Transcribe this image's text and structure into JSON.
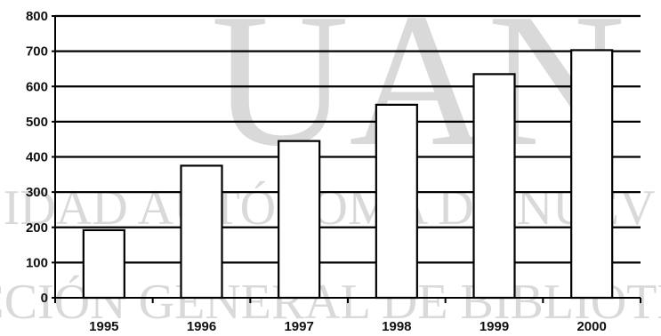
{
  "chart_data": {
    "type": "bar",
    "categories": [
      "1995",
      "1996",
      "1997",
      "1998",
      "1999",
      "2000"
    ],
    "values": [
      192,
      375,
      445,
      548,
      635,
      703
    ],
    "ylim": [
      0,
      800
    ],
    "yticks": [
      0,
      100,
      200,
      300,
      400,
      500,
      600,
      700,
      800
    ],
    "ytick_labels": [
      "0",
      "100",
      "200",
      "300",
      "400",
      "500",
      "600",
      "700",
      "800"
    ],
    "grid": true,
    "legend": "none",
    "bar_fill": "#ffffff",
    "bar_stroke": "#000000"
  },
  "watermark": {
    "logo": "UAN",
    "line1": "IDAD AUTÓNOMA DE NUEV",
    "line2": "CCIÓN GENERAL DE BIBLIOTE"
  }
}
